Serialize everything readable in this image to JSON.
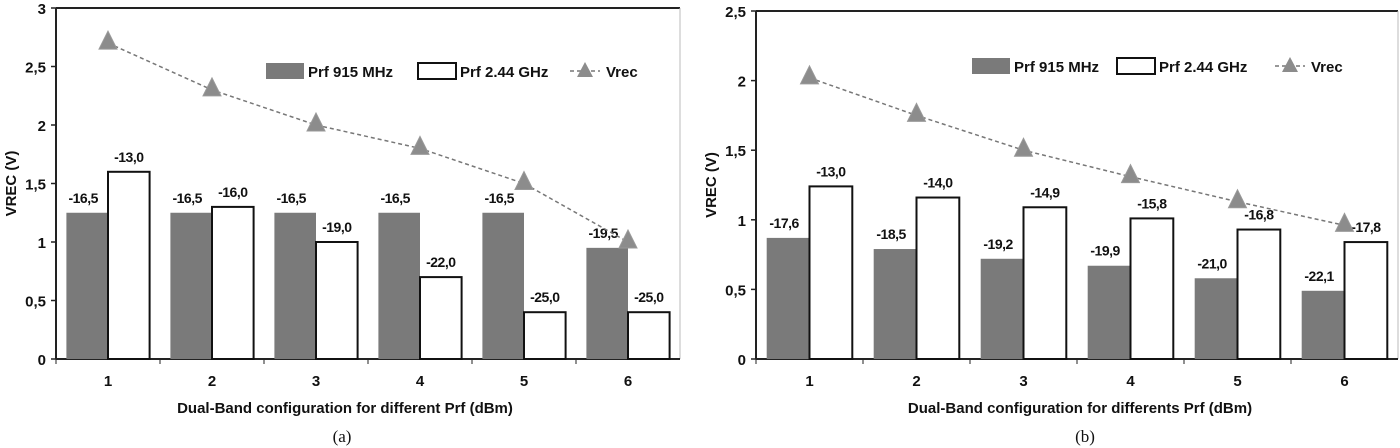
{
  "chart_data": [
    {
      "type": "bar",
      "caption": "(a)",
      "xlabel": "Dual-Band configuration for different Prf (dBm)",
      "ylabel": "VREC (V)",
      "ylim": [
        0,
        3
      ],
      "yticks": [
        "0",
        "0,5",
        "1",
        "1,5",
        "2",
        "2,5",
        "3"
      ],
      "categories": [
        "1",
        "2",
        "3",
        "4",
        "5",
        "6"
      ],
      "legend_position": "top-right",
      "series": [
        {
          "name": "Prf 915 MHz",
          "kind": "bar",
          "color": "#7a7a7a",
          "values": [
            1.25,
            1.25,
            1.25,
            1.25,
            1.25,
            0.95
          ],
          "labels": [
            "-16,5",
            "-16,5",
            "-16,5",
            "-16,5",
            "-16,5",
            "-19,5"
          ]
        },
        {
          "name": "Prf 2.44 GHz",
          "kind": "bar",
          "color": "#ffffff",
          "values": [
            1.6,
            1.3,
            1.0,
            0.7,
            0.4,
            0.4
          ],
          "labels": [
            "-13,0",
            "-16,0",
            "-19,0",
            "-22,0",
            "-25,0",
            "-25,0"
          ]
        },
        {
          "name": "Vrec",
          "kind": "line",
          "color": "#8c8c8c",
          "values": [
            2.7,
            2.3,
            2.0,
            1.8,
            1.5,
            1.0
          ]
        }
      ]
    },
    {
      "type": "bar",
      "caption": "(b)",
      "xlabel": "Dual-Band configuration for differents Prf (dBm)",
      "ylabel": "VREC (V)",
      "ylim": [
        0,
        2.5
      ],
      "yticks": [
        "0",
        "0,5",
        "1",
        "1,5",
        "2",
        "2,5"
      ],
      "categories": [
        "1",
        "2",
        "3",
        "4",
        "5",
        "6"
      ],
      "legend_position": "top-right",
      "series": [
        {
          "name": "Prf 915 MHz",
          "kind": "bar",
          "color": "#7a7a7a",
          "values": [
            0.87,
            0.79,
            0.72,
            0.67,
            0.58,
            0.49
          ],
          "labels": [
            "-17,6",
            "-18,5",
            "-19,2",
            "-19,9",
            "-21,0",
            "-22,1"
          ]
        },
        {
          "name": "Prf 2.44 GHz",
          "kind": "bar",
          "color": "#ffffff",
          "values": [
            1.24,
            1.16,
            1.09,
            1.01,
            0.93,
            0.84
          ],
          "labels": [
            "-13,0",
            "-14,0",
            "-14,9",
            "-15,8",
            "-16,8",
            "-17,8"
          ]
        },
        {
          "name": "Vrec",
          "kind": "line",
          "color": "#8c8c8c",
          "values": [
            2.02,
            1.75,
            1.5,
            1.31,
            1.13,
            0.96
          ]
        }
      ]
    }
  ]
}
